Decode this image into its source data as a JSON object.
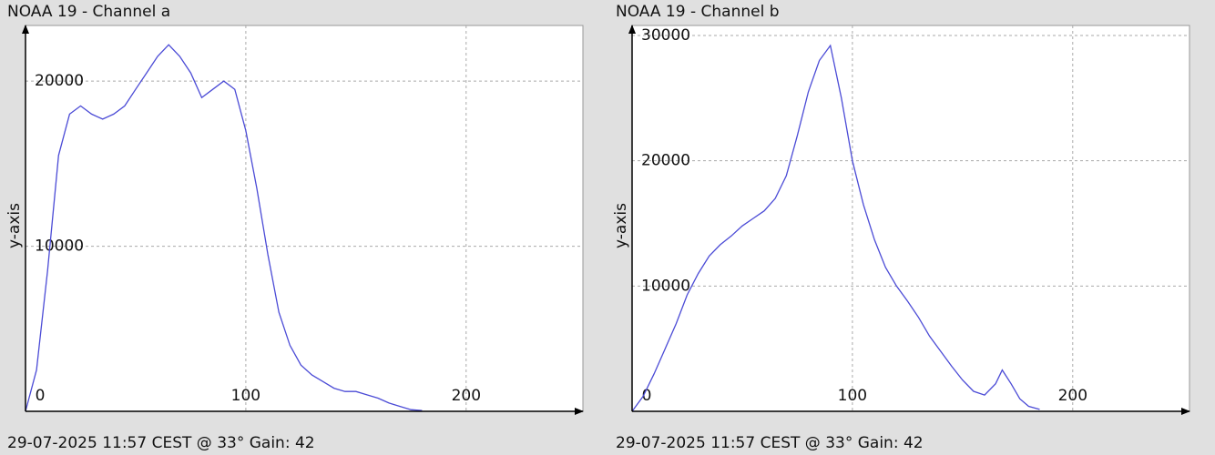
{
  "chart_data": [
    {
      "type": "line",
      "title": "NOAA 19 - Channel a",
      "y_label": "y-axis",
      "footer": "29-07-2025 11:57 CEST @ 33° Gain: 42",
      "xlim": [
        0,
        253
      ],
      "xticks": [
        0,
        100,
        200
      ],
      "ylim": [
        0,
        23370
      ],
      "yticks": [
        10000,
        20000
      ],
      "grid": true,
      "series": [
        {
          "color": "#4b4bd6",
          "x": [
            0,
            5,
            10,
            15,
            20,
            25,
            30,
            35,
            40,
            45,
            50,
            55,
            60,
            65,
            70,
            75,
            80,
            85,
            90,
            95,
            100,
            105,
            110,
            115,
            120,
            125,
            130,
            135,
            140,
            145,
            150,
            155,
            160,
            165,
            170,
            175,
            180
          ],
          "values": [
            0,
            2500,
            8500,
            15500,
            18000,
            18500,
            18000,
            17700,
            18000,
            18500,
            19500,
            20500,
            21500,
            22200,
            21500,
            20500,
            19000,
            19500,
            20000,
            19500,
            17000,
            13500,
            9500,
            6000,
            4000,
            2800,
            2200,
            1800,
            1400,
            1200,
            1200,
            1000,
            800,
            500,
            300,
            100,
            50
          ]
        }
      ]
    },
    {
      "type": "line",
      "title": "NOAA 19 - Channel b",
      "y_label": "y-axis",
      "footer": "29-07-2025 11:57 CEST @ 33° Gain: 42",
      "xlim": [
        0,
        253
      ],
      "xticks": [
        0,
        100,
        200
      ],
      "ylim": [
        0,
        30800
      ],
      "yticks": [
        10000,
        20000,
        30000
      ],
      "grid": true,
      "series": [
        {
          "color": "#4b4bd6",
          "x": [
            0,
            5,
            10,
            15,
            20,
            25,
            30,
            35,
            40,
            45,
            50,
            55,
            60,
            65,
            70,
            75,
            80,
            85,
            90,
            95,
            100,
            105,
            110,
            115,
            120,
            125,
            130,
            135,
            140,
            145,
            150,
            155,
            160,
            165,
            168,
            172,
            176,
            180,
            185
          ],
          "values": [
            0,
            1200,
            3000,
            5000,
            7000,
            9300,
            11000,
            12400,
            13300,
            14000,
            14800,
            15400,
            16000,
            17000,
            18800,
            22000,
            25500,
            28000,
            29200,
            25000,
            20000,
            16500,
            13700,
            11500,
            10000,
            8800,
            7500,
            6000,
            4800,
            3600,
            2500,
            1600,
            1300,
            2200,
            3300,
            2200,
            1000,
            400,
            150
          ]
        }
      ]
    }
  ]
}
